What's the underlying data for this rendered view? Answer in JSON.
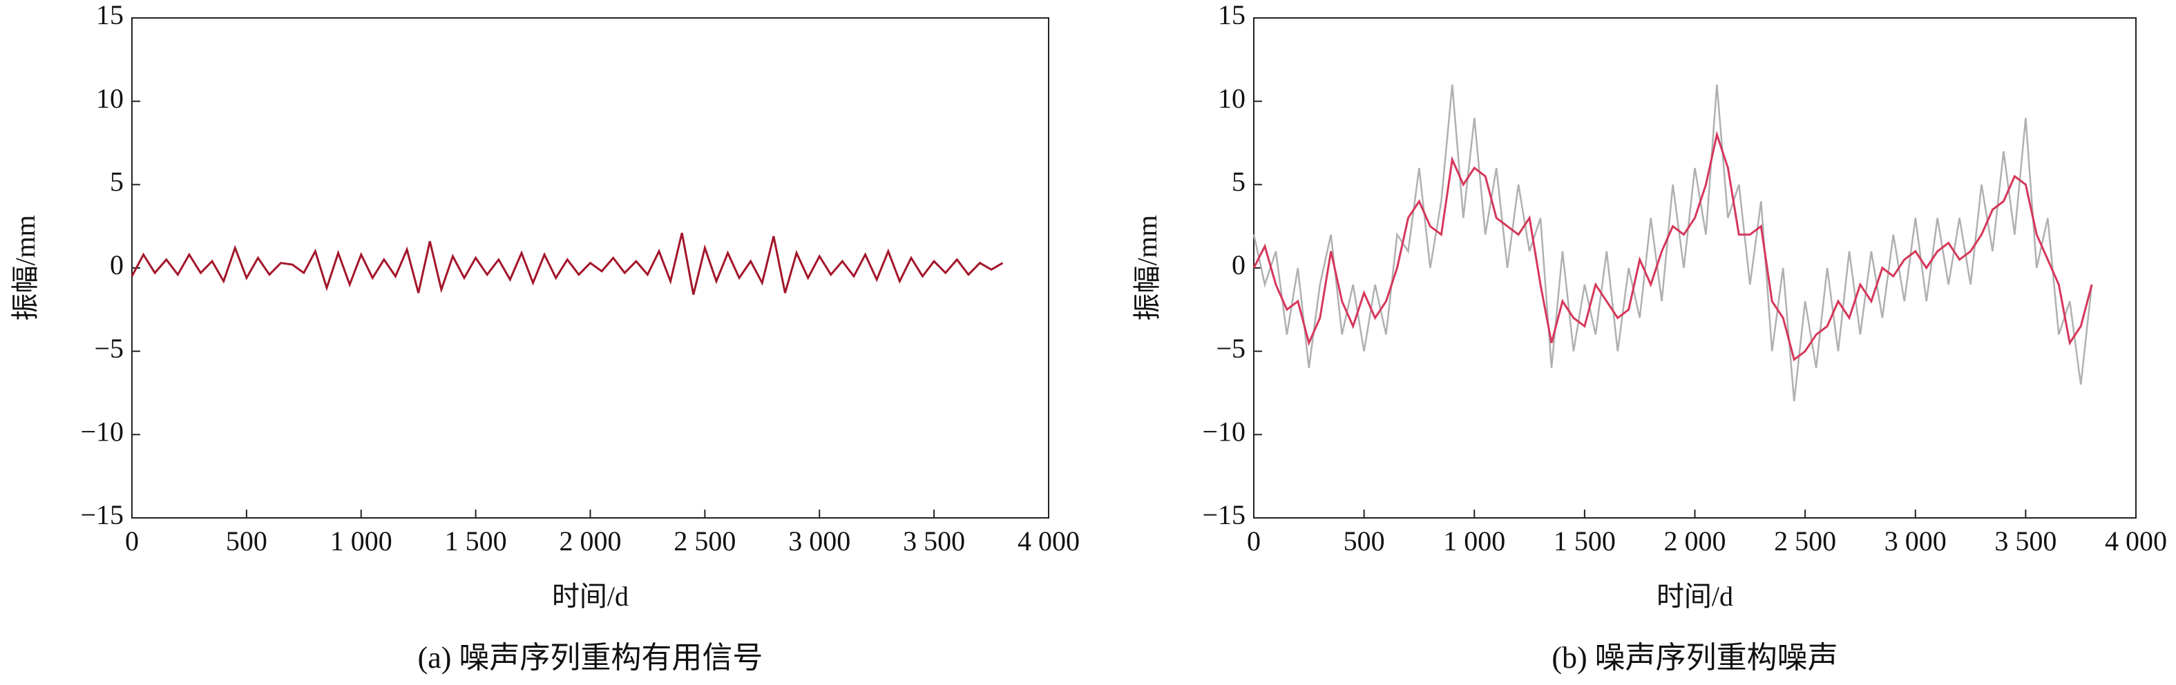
{
  "chart_data": [
    {
      "type": "line",
      "title": "(a) 噪声序列重构有用信号",
      "xlabel": "时间/d",
      "ylabel": "振幅/mm",
      "x": [
        0,
        50,
        100,
        150,
        200,
        250,
        300,
        350,
        400,
        450,
        500,
        550,
        600,
        650,
        700,
        750,
        800,
        850,
        900,
        950,
        1000,
        1050,
        1100,
        1150,
        1200,
        1250,
        1300,
        1350,
        1400,
        1450,
        1500,
        1550,
        1600,
        1650,
        1700,
        1750,
        1800,
        1850,
        1900,
        1950,
        2000,
        2050,
        2100,
        2150,
        2200,
        2250,
        2300,
        2350,
        2400,
        2450,
        2500,
        2550,
        2600,
        2650,
        2700,
        2750,
        2800,
        2850,
        2900,
        2950,
        3000,
        3050,
        3100,
        3150,
        3200,
        3250,
        3300,
        3350,
        3400,
        3450,
        3500,
        3550,
        3600,
        3650,
        3700,
        3750,
        3800
      ],
      "series": [
        {
          "color": "#a3152a",
          "values": [
            -0.5,
            0.8,
            -0.3,
            0.5,
            -0.4,
            0.8,
            -0.3,
            0.4,
            -0.8,
            1.2,
            -0.6,
            0.6,
            -0.4,
            0.3,
            0.2,
            -0.3,
            1.0,
            -1.2,
            0.9,
            -1.0,
            0.8,
            -0.6,
            0.5,
            -0.5,
            1.1,
            -1.5,
            1.6,
            -1.3,
            0.7,
            -0.6,
            0.6,
            -0.4,
            0.5,
            -0.7,
            0.9,
            -0.9,
            0.8,
            -0.6,
            0.5,
            -0.4,
            0.3,
            -0.2,
            0.6,
            -0.3,
            0.4,
            -0.4,
            1.0,
            -0.8,
            2.1,
            -1.6,
            1.2,
            -0.8,
            0.9,
            -0.6,
            0.4,
            -0.9,
            1.9,
            -1.5,
            0.9,
            -0.6,
            0.7,
            -0.4,
            0.4,
            -0.5,
            0.8,
            -0.7,
            1.0,
            -0.8,
            0.6,
            -0.5,
            0.4,
            -0.3,
            0.5,
            -0.4,
            0.3,
            -0.1,
            0.3
          ]
        }
      ],
      "xlim": [
        0,
        4000
      ],
      "ylim": [
        -15,
        15
      ],
      "xticks": [
        0,
        500,
        {
          "value": 1000,
          "label": "1 000"
        },
        {
          "value": 1500,
          "label": "1 500"
        },
        {
          "value": 2000,
          "label": "2 000"
        },
        {
          "value": 2500,
          "label": "2 500"
        },
        {
          "value": 3000,
          "label": "3 000"
        },
        {
          "value": 3500,
          "label": "3 500"
        },
        {
          "value": 4000,
          "label": "4 000"
        }
      ],
      "yticks": [
        {
          "value": -15,
          "label": "−15"
        },
        {
          "value": -10,
          "label": "−10"
        },
        {
          "value": -5,
          "label": "−5"
        },
        0,
        5,
        10,
        15
      ]
    },
    {
      "type": "line",
      "title": "(b) 噪声序列重构噪声",
      "xlabel": "时间/d",
      "ylabel": "振幅/mm",
      "x": [
        0,
        50,
        100,
        150,
        200,
        250,
        300,
        350,
        400,
        450,
        500,
        550,
        600,
        650,
        700,
        750,
        800,
        850,
        900,
        950,
        1000,
        1050,
        1100,
        1150,
        1200,
        1250,
        1300,
        1350,
        1400,
        1450,
        1500,
        1550,
        1600,
        1650,
        1700,
        1750,
        1800,
        1850,
        1900,
        1950,
        2000,
        2050,
        2100,
        2150,
        2200,
        2250,
        2300,
        2350,
        2400,
        2450,
        2500,
        2550,
        2600,
        2650,
        2700,
        2750,
        2800,
        2850,
        2900,
        2950,
        3000,
        3050,
        3100,
        3150,
        3200,
        3250,
        3300,
        3350,
        3400,
        3450,
        3500,
        3550,
        3600,
        3650,
        3700,
        3750,
        3800
      ],
      "series": [
        {
          "color": "#b0b0b0",
          "values": [
            2,
            -1,
            1,
            -4,
            0,
            -6,
            -1,
            2,
            -4,
            -1,
            -5,
            -1,
            -4,
            2,
            1,
            6,
            0,
            4,
            11,
            3,
            9,
            2,
            6,
            0,
            5,
            1,
            3,
            -6,
            1,
            -5,
            -1,
            -4,
            1,
            -5,
            0,
            -3,
            3,
            -2,
            5,
            0,
            6,
            2,
            11,
            3,
            5,
            -1,
            4,
            -5,
            0,
            -8,
            -2,
            -6,
            0,
            -5,
            1,
            -4,
            1,
            -3,
            2,
            -2,
            3,
            -2,
            3,
            -1,
            3,
            -1,
            5,
            1,
            7,
            2,
            9,
            0,
            3,
            -4,
            -2,
            -7,
            -1
          ]
        },
        {
          "color": "#d6375a",
          "values": [
            0,
            1.3,
            -1,
            -2.5,
            -2,
            -4.5,
            -3,
            1,
            -2,
            -3.5,
            -1.5,
            -3,
            -2,
            0,
            3,
            4,
            2.5,
            2,
            6.5,
            5,
            6,
            5.5,
            3,
            2.5,
            2,
            3,
            -1,
            -4.5,
            -2,
            -3,
            -3.5,
            -1,
            -2,
            -3,
            -2.5,
            0.5,
            -1,
            1,
            2.5,
            2,
            3,
            5,
            8,
            6,
            2,
            2,
            2.5,
            -2,
            -3,
            -5.5,
            -5,
            -4,
            -3.5,
            -2,
            -3,
            -1,
            -2,
            0,
            -0.5,
            0.5,
            1,
            0,
            1,
            1.5,
            0.5,
            1,
            2,
            3.5,
            4,
            5.5,
            5,
            2,
            0.5,
            -1,
            -4.5,
            -3.5,
            -1
          ]
        }
      ],
      "xlim": [
        0,
        4000
      ],
      "ylim": [
        -15,
        15
      ],
      "xticks": [
        0,
        500,
        {
          "value": 1000,
          "label": "1 000"
        },
        {
          "value": 1500,
          "label": "1 500"
        },
        {
          "value": 2000,
          "label": "2 000"
        },
        {
          "value": 2500,
          "label": "2 500"
        },
        {
          "value": 3000,
          "label": "3 000"
        },
        {
          "value": 3500,
          "label": "3 500"
        },
        {
          "value": 4000,
          "label": "4 000"
        }
      ],
      "yticks": [
        {
          "value": -15,
          "label": "−15"
        },
        {
          "value": -10,
          "label": "−10"
        },
        {
          "value": -5,
          "label": "−5"
        },
        0,
        5,
        10,
        15
      ]
    }
  ]
}
